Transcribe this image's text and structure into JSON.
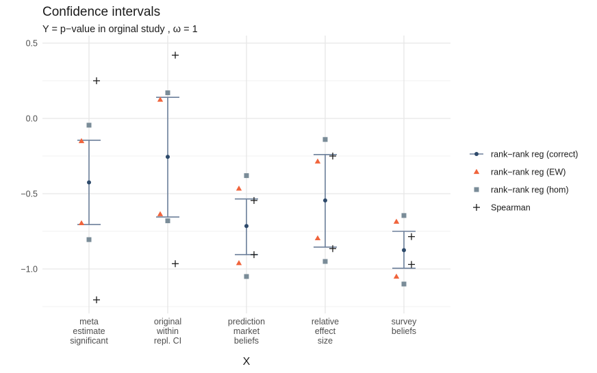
{
  "chart_data": {
    "type": "scatter",
    "title": "Confidence intervals",
    "subtitle": "Y = p−value in orginal study , ω = 1",
    "xlabel": "X",
    "ylabel": "",
    "ylim": [
      -1.25,
      0.5
    ],
    "yticks": [
      0.5,
      0.0,
      -0.5,
      -1.0
    ],
    "ytick_labels": [
      "0.5",
      "0.0",
      "−0.5",
      "−1.0"
    ],
    "grid": true,
    "legend_position": "right",
    "categories": [
      [
        "meta",
        "estimate",
        "significant"
      ],
      [
        "original",
        "within",
        "repl. CI"
      ],
      [
        "prediction",
        "market",
        "beliefs"
      ],
      [
        "relative",
        "effect",
        "size"
      ],
      [
        "survey",
        "beliefs"
      ]
    ],
    "series": [
      {
        "name": "rank−rank reg (correct)",
        "marker": "point-errorbar",
        "color": "#2e4a6b",
        "bar_color": "#6b7f9a",
        "values": [
          -0.425,
          -0.255,
          -0.715,
          -0.545,
          -0.875
        ],
        "lower": [
          -0.705,
          -0.655,
          -0.905,
          -0.855,
          -0.995
        ],
        "upper": [
          -0.145,
          0.14,
          -0.535,
          -0.24,
          -0.75
        ]
      },
      {
        "name": "rank−rank reg (EW)",
        "marker": "triangle",
        "color": "#f0643c",
        "values": [
          [
            -0.15,
            -0.695
          ],
          [
            0.125,
            -0.635
          ],
          [
            -0.465,
            -0.96
          ],
          [
            -0.285,
            -0.795
          ],
          [
            -0.685,
            -1.05
          ]
        ]
      },
      {
        "name": "rank−rank reg (hom)",
        "marker": "square",
        "color": "#7a8c98",
        "values": [
          [
            -0.045,
            -0.805
          ],
          [
            0.17,
            -0.68
          ],
          [
            -0.38,
            -1.05
          ],
          [
            -0.14,
            -0.95
          ],
          [
            -0.645,
            -1.1
          ]
        ]
      },
      {
        "name": "Spearman",
        "marker": "plus",
        "color": "#1a1a1a",
        "values": [
          [
            0.25,
            -1.205
          ],
          [
            0.42,
            -0.965
          ],
          [
            -0.545,
            -0.905
          ],
          [
            -0.25,
            -0.865
          ],
          [
            -0.785,
            -0.97
          ]
        ]
      }
    ]
  }
}
